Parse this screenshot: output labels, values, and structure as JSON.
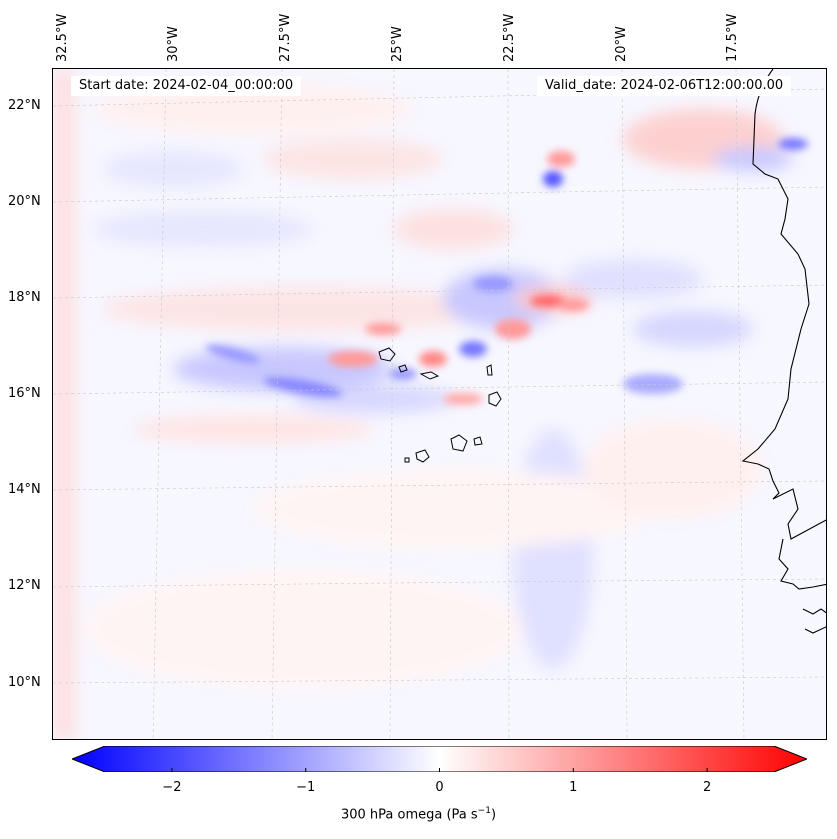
{
  "map": {
    "top_labels": [
      "32.5°W",
      "30°W",
      "27.5°W",
      "25°W",
      "22.5°W",
      "20°W",
      "17.5°W"
    ],
    "left_labels": [
      "22°N",
      "20°N",
      "18°N",
      "16°N",
      "14°N",
      "12°N",
      "10°N"
    ],
    "start_date": "Start date: 2024-02-04_00:00:00",
    "valid_date": "Valid_date: 2024-02-06T12:00:00.00"
  },
  "colorbar": {
    "ticks": [
      "−2",
      "−1",
      "0",
      "1",
      "2"
    ],
    "tick_values": [
      -2,
      -1,
      0,
      1,
      2
    ],
    "range": [
      -2.5,
      2.5
    ],
    "label_main": "300 hPa omega (Pa s",
    "label_sup": "−1",
    "label_close": ")",
    "colors": {
      "negative": "#0000ff",
      "zero": "#ffffff",
      "positive": "#ff0000"
    }
  }
}
